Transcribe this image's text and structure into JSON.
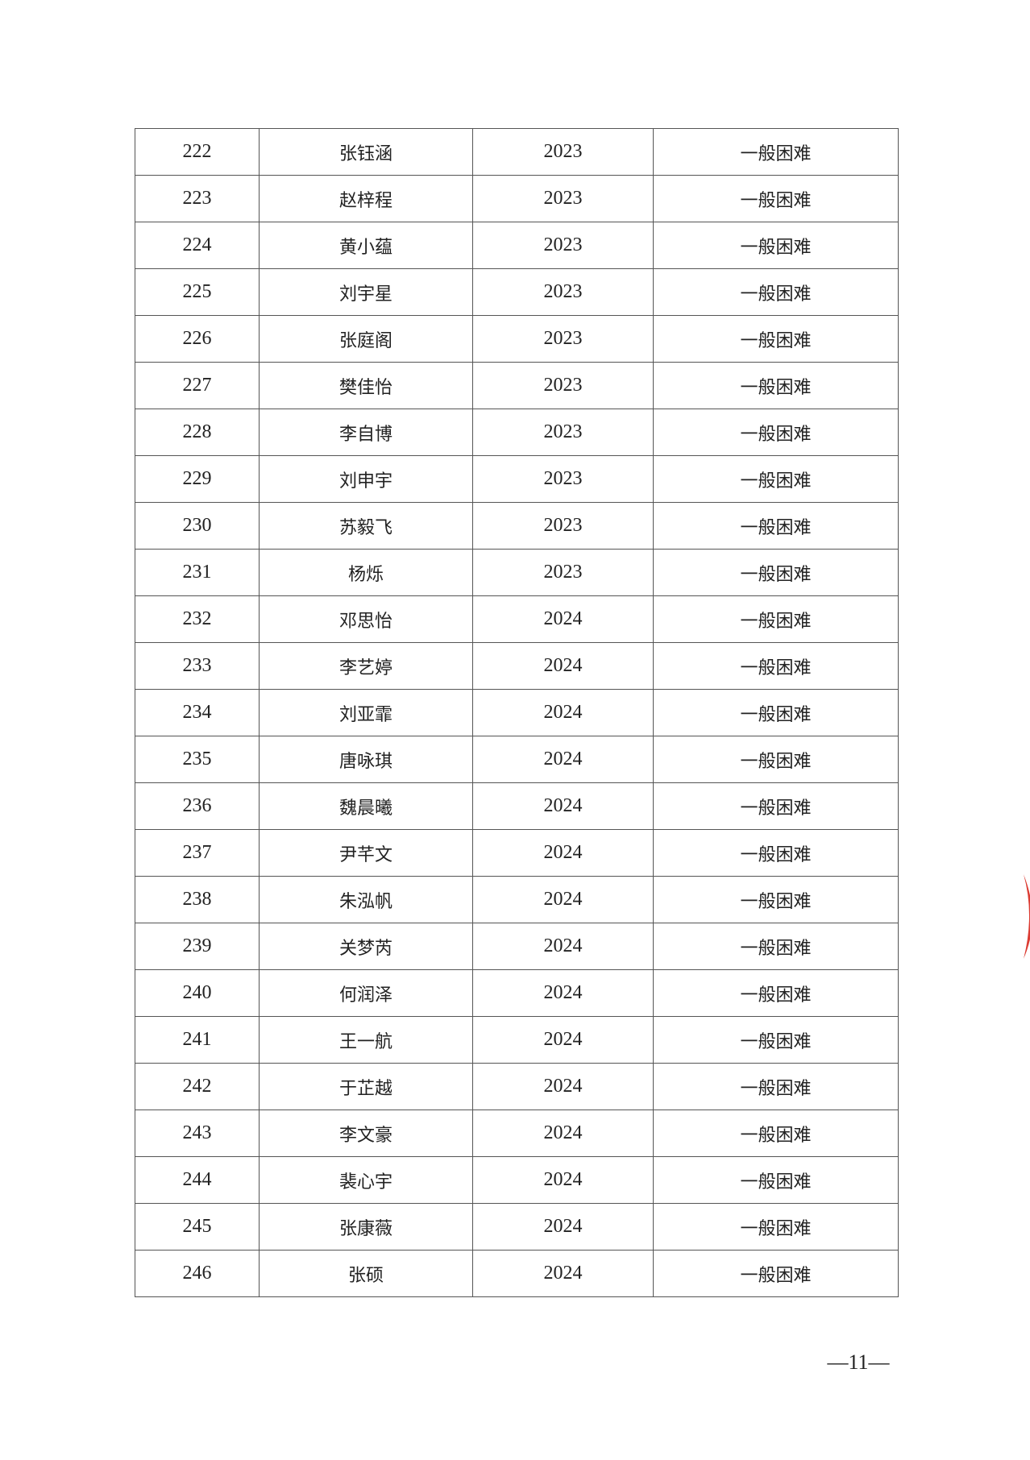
{
  "table": {
    "rows": [
      {
        "no": "222",
        "name": "张钰涵",
        "year": "2023",
        "level": "一般困难"
      },
      {
        "no": "223",
        "name": "赵梓程",
        "year": "2023",
        "level": "一般困难"
      },
      {
        "no": "224",
        "name": "黄小蕴",
        "year": "2023",
        "level": "一般困难"
      },
      {
        "no": "225",
        "name": "刘宇星",
        "year": "2023",
        "level": "一般困难"
      },
      {
        "no": "226",
        "name": "张庭阁",
        "year": "2023",
        "level": "一般困难"
      },
      {
        "no": "227",
        "name": "樊佳怡",
        "year": "2023",
        "level": "一般困难"
      },
      {
        "no": "228",
        "name": "李自博",
        "year": "2023",
        "level": "一般困难"
      },
      {
        "no": "229",
        "name": "刘申宇",
        "year": "2023",
        "level": "一般困难"
      },
      {
        "no": "230",
        "name": "苏毅飞",
        "year": "2023",
        "level": "一般困难"
      },
      {
        "no": "231",
        "name": "杨烁",
        "year": "2023",
        "level": "一般困难"
      },
      {
        "no": "232",
        "name": "邓思怡",
        "year": "2024",
        "level": "一般困难"
      },
      {
        "no": "233",
        "name": "李艺婷",
        "year": "2024",
        "level": "一般困难"
      },
      {
        "no": "234",
        "name": "刘亚霏",
        "year": "2024",
        "level": "一般困难"
      },
      {
        "no": "235",
        "name": "唐咏琪",
        "year": "2024",
        "level": "一般困难"
      },
      {
        "no": "236",
        "name": "魏晨曦",
        "year": "2024",
        "level": "一般困难"
      },
      {
        "no": "237",
        "name": "尹芊文",
        "year": "2024",
        "level": "一般困难"
      },
      {
        "no": "238",
        "name": "朱泓帆",
        "year": "2024",
        "level": "一般困难"
      },
      {
        "no": "239",
        "name": "关梦芮",
        "year": "2024",
        "level": "一般困难"
      },
      {
        "no": "240",
        "name": "何润泽",
        "year": "2024",
        "level": "一般困难"
      },
      {
        "no": "241",
        "name": "王一航",
        "year": "2024",
        "level": "一般困难"
      },
      {
        "no": "242",
        "name": "于芷越",
        "year": "2024",
        "level": "一般困难"
      },
      {
        "no": "243",
        "name": "李文豪",
        "year": "2024",
        "level": "一般困难"
      },
      {
        "no": "244",
        "name": "裴心宇",
        "year": "2024",
        "level": "一般困难"
      },
      {
        "no": "245",
        "name": "张康薇",
        "year": "2024",
        "level": "一般困难"
      },
      {
        "no": "246",
        "name": "张硕",
        "year": "2024",
        "level": "一般困难"
      }
    ]
  },
  "footer": {
    "page_number": "—11—"
  },
  "stamp": {
    "color": "#d8281e"
  }
}
